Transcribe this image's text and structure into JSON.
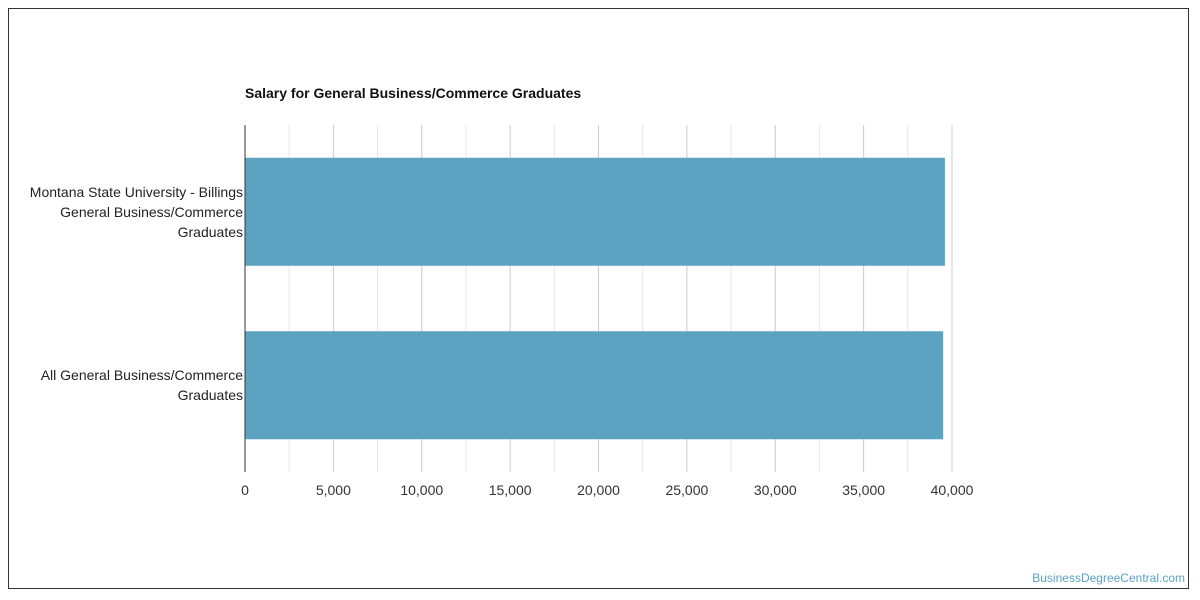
{
  "chart_data": {
    "type": "bar",
    "orientation": "horizontal",
    "title": "Salary for General Business/Commerce Graduates",
    "categories": [
      "Montana State University - Billings\nGeneral Business/Commerce\nGraduates",
      "All General Business/Commerce\nGraduates"
    ],
    "values": [
      39600,
      39500
    ],
    "xlim": [
      0,
      40000
    ],
    "xticks": [
      0,
      5000,
      10000,
      15000,
      20000,
      25000,
      30000,
      35000,
      40000
    ],
    "xtick_labels": [
      "0",
      "5,000",
      "10,000",
      "15,000",
      "20,000",
      "25,000",
      "30,000",
      "35,000",
      "40,000"
    ],
    "grid": true,
    "bar_color": "#5ba3c0"
  },
  "footer": {
    "watermark": "BusinessDegreeCentral.com"
  }
}
